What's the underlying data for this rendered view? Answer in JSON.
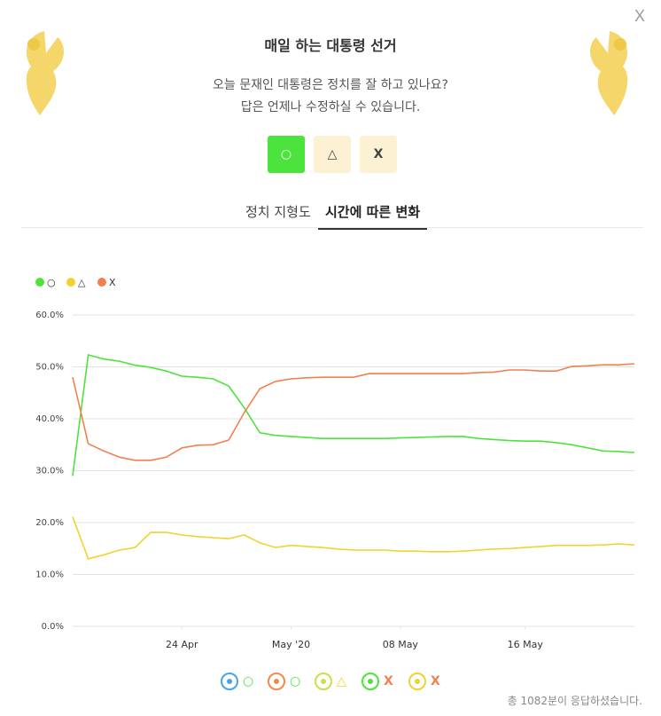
{
  "header": {
    "close": "X",
    "title": "매일 하는 대통령 선거",
    "subtitle": [
      "오늘 문재인 대통령은 정치를 잘 하고 있나요?",
      "답은 언제나 수정하실 수 있습니다."
    ]
  },
  "buttons": [
    "○",
    "△",
    "X"
  ],
  "tabs": [
    "정치 지형도",
    "시간에 따른 변화"
  ],
  "chart_data": {
    "type": "line",
    "x": [
      "2020-04-17",
      "2020-04-18",
      "2020-04-19",
      "2020-04-20",
      "2020-04-21",
      "2020-04-22",
      "2020-04-23",
      "2020-04-24",
      "2020-04-25",
      "2020-04-26",
      "2020-04-27",
      "2020-04-28",
      "2020-04-29",
      "2020-04-30",
      "2020-05-01",
      "2020-05-02",
      "2020-05-03",
      "2020-05-04",
      "2020-05-05",
      "2020-05-06",
      "2020-05-07",
      "2020-05-08",
      "2020-05-09",
      "2020-05-10",
      "2020-05-11",
      "2020-05-12",
      "2020-05-13",
      "2020-05-14",
      "2020-05-15",
      "2020-05-16",
      "2020-05-17",
      "2020-05-18",
      "2020-05-19",
      "2020-05-20",
      "2020-05-21",
      "2020-05-22",
      "2020-05-23"
    ],
    "series": [
      {
        "name": "○",
        "color": "#4de33d",
        "values": [
          29,
          52.3,
          51.5,
          51.1,
          50.3,
          49.9,
          49.2,
          48.2,
          48.0,
          47.7,
          46.3,
          42.1,
          37.3,
          36.8,
          36.6,
          36.4,
          36.2,
          36.2,
          36.2,
          36.2,
          36.2,
          36.3,
          36.4,
          36.5,
          36.6,
          36.6,
          36.2,
          36.0,
          35.8,
          35.7,
          35.7,
          35.4,
          35.0,
          34.4,
          33.8,
          33.7,
          33.5
        ]
      },
      {
        "name": "△",
        "color": "#f2d22e",
        "values": [
          21.1,
          13.0,
          13.8,
          14.7,
          15.2,
          18.1,
          18.1,
          17.6,
          17.3,
          17.1,
          16.9,
          17.6,
          16.1,
          15.2,
          15.6,
          15.4,
          15.2,
          14.9,
          14.7,
          14.7,
          14.7,
          14.5,
          14.5,
          14.4,
          14.4,
          14.5,
          14.7,
          14.9,
          15.0,
          15.2,
          15.4,
          15.6,
          15.6,
          15.6,
          15.7,
          15.9,
          15.7
        ]
      },
      {
        "name": "X",
        "color": "#f47f4e",
        "values": [
          48,
          35.2,
          33.8,
          32.6,
          32.0,
          32.0,
          32.6,
          34.4,
          34.9,
          35.0,
          35.9,
          41.2,
          45.8,
          47.2,
          47.7,
          47.9,
          48.0,
          48.0,
          48.0,
          48.7,
          48.7,
          48.7,
          48.7,
          48.7,
          48.7,
          48.7,
          48.9,
          49.0,
          49.4,
          49.4,
          49.2,
          49.2,
          50.1,
          50.2,
          50.4,
          50.4,
          50.6
        ]
      }
    ],
    "xlim": [
      "2020-04-17",
      "2020-05-23"
    ],
    "xticks": [
      {
        "value": "2020-04-24",
        "label": "24 Apr"
      },
      {
        "value": "2020-05-01",
        "label": "May '20"
      },
      {
        "value": "2020-05-08",
        "label": "08 May"
      },
      {
        "value": "2020-05-16",
        "label": "16 May"
      }
    ],
    "ylim": [
      0,
      60
    ],
    "yticks": [
      {
        "value": 0,
        "label": "0.0%"
      },
      {
        "value": 10,
        "label": "10.0%"
      },
      {
        "value": 20,
        "label": "20.0%"
      },
      {
        "value": 30,
        "label": "30.0%"
      },
      {
        "value": 40,
        "label": "40.0%"
      },
      {
        "value": 50,
        "label": "50.0%"
      },
      {
        "value": 60,
        "label": "60.0%"
      }
    ],
    "grid": true,
    "legend": "top-left"
  },
  "icon_legend": [
    "○",
    "○",
    "△",
    "X",
    "X"
  ],
  "footer": "총 1082분이 응답하셨습니다."
}
